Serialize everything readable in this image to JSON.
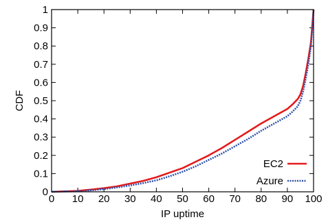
{
  "chart_data": {
    "type": "line",
    "title": "",
    "xlabel": "IP uptime",
    "ylabel": "CDF",
    "xlim": [
      0,
      100
    ],
    "ylim": [
      0,
      1
    ],
    "xticks": [
      0,
      10,
      20,
      30,
      40,
      50,
      60,
      70,
      80,
      90,
      100
    ],
    "yticks": [
      0,
      0.1,
      0.2,
      0.3,
      0.4,
      0.5,
      0.6,
      0.7,
      0.8,
      0.9,
      1
    ],
    "grid": false,
    "legend_position": "bottom-right",
    "series": [
      {
        "name": "EC2",
        "color": "#e41a1c",
        "style": "solid",
        "x": [
          0,
          10,
          15,
          20,
          25,
          30,
          35,
          40,
          45,
          50,
          55,
          60,
          65,
          70,
          75,
          80,
          85,
          90,
          92,
          94,
          95,
          96,
          97,
          98,
          99,
          100
        ],
        "y": [
          0,
          0.005,
          0.012,
          0.02,
          0.03,
          0.045,
          0.06,
          0.08,
          0.105,
          0.13,
          0.165,
          0.2,
          0.24,
          0.285,
          0.33,
          0.375,
          0.415,
          0.455,
          0.48,
          0.51,
          0.535,
          0.58,
          0.65,
          0.73,
          0.82,
          1.0
        ]
      },
      {
        "name": "Azure",
        "color": "#2e4fa8",
        "style": "dotted",
        "x": [
          0,
          10,
          15,
          20,
          25,
          30,
          35,
          40,
          45,
          50,
          55,
          60,
          65,
          70,
          75,
          80,
          85,
          90,
          92,
          94,
          95,
          96,
          97,
          98,
          99,
          100
        ],
        "y": [
          0,
          0.003,
          0.008,
          0.015,
          0.024,
          0.035,
          0.048,
          0.063,
          0.085,
          0.11,
          0.14,
          0.175,
          0.21,
          0.25,
          0.29,
          0.335,
          0.375,
          0.415,
          0.44,
          0.47,
          0.5,
          0.55,
          0.62,
          0.7,
          0.8,
          1.0
        ]
      }
    ]
  }
}
